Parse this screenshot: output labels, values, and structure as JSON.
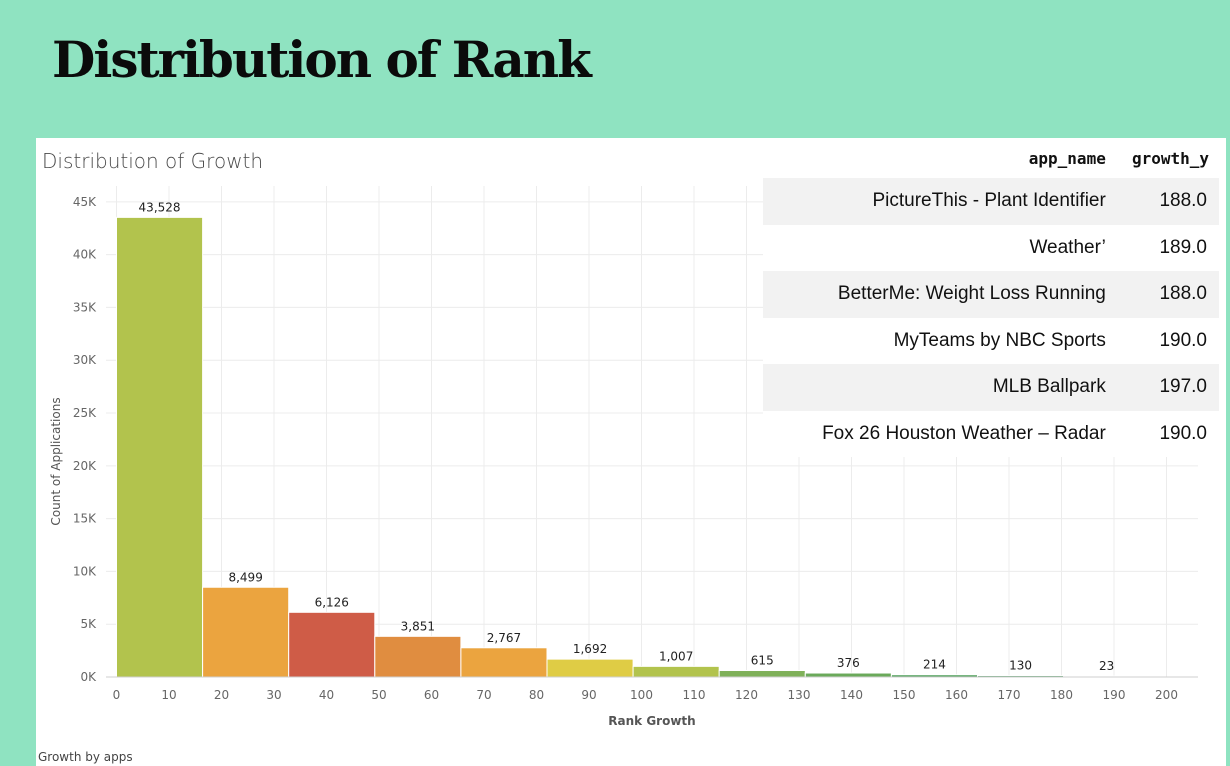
{
  "slide": {
    "title": "Distribution of Rank"
  },
  "chart_data": {
    "type": "bar",
    "title": "Distribution of Growth",
    "xlabel": "Rank Growth",
    "ylabel": "Count of Applications",
    "caption": "Growth by apps",
    "bin_width": 16.4,
    "bins": [
      {
        "start": 0,
        "value": 43528,
        "label": "43,528",
        "color": "#b2c34d"
      },
      {
        "start": 16.4,
        "value": 8499,
        "label": "8,499",
        "color": "#eba43f"
      },
      {
        "start": 32.8,
        "value": 6126,
        "label": "6,126",
        "color": "#cf5c47"
      },
      {
        "start": 49.2,
        "value": 3851,
        "label": "3,851",
        "color": "#e08d40"
      },
      {
        "start": 65.6,
        "value": 2767,
        "label": "2,767",
        "color": "#eba43f"
      },
      {
        "start": 82,
        "value": 1692,
        "label": "1,692",
        "color": "#dfcc45"
      },
      {
        "start": 98.4,
        "value": 1007,
        "label": "1,007",
        "color": "#b2c34d"
      },
      {
        "start": 114.8,
        "value": 615,
        "label": "615",
        "color": "#7fb159"
      },
      {
        "start": 131.2,
        "value": 376,
        "label": "376",
        "color": "#6aa95a"
      },
      {
        "start": 147.6,
        "value": 214,
        "label": "214",
        "color": "#4e9e57"
      },
      {
        "start": 164,
        "value": 130,
        "label": "130",
        "color": "#3d8c4f"
      },
      {
        "start": 180.4,
        "value": 23,
        "label": "23",
        "color": "#2f7d46"
      }
    ],
    "xlim": [
      -2,
      206
    ],
    "ylim": [
      0,
      46500
    ],
    "x_ticks": [
      0,
      10,
      20,
      30,
      40,
      50,
      60,
      70,
      80,
      90,
      100,
      110,
      120,
      130,
      140,
      150,
      160,
      170,
      180,
      190,
      200
    ],
    "y_ticks": [
      {
        "value": 0,
        "label": "0K"
      },
      {
        "value": 5000,
        "label": "5K"
      },
      {
        "value": 10000,
        "label": "10K"
      },
      {
        "value": 15000,
        "label": "15K"
      },
      {
        "value": 20000,
        "label": "20K"
      },
      {
        "value": 25000,
        "label": "25K"
      },
      {
        "value": 30000,
        "label": "30K"
      },
      {
        "value": 35000,
        "label": "35K"
      },
      {
        "value": 40000,
        "label": "40K"
      },
      {
        "value": 45000,
        "label": "45K"
      }
    ],
    "grid": true
  },
  "table": {
    "headers": [
      "app_name",
      "growth_y"
    ],
    "rows": [
      [
        "PictureThis - Plant Identifier",
        "188.0"
      ],
      [
        "Weather’",
        "189.0"
      ],
      [
        "BetterMe: Weight Loss Running",
        "188.0"
      ],
      [
        "MyTeams by NBC Sports",
        "190.0"
      ],
      [
        "MLB Ballpark",
        "197.0"
      ],
      [
        "Fox 26 Houston Weather – Radar",
        "190.0"
      ]
    ]
  }
}
